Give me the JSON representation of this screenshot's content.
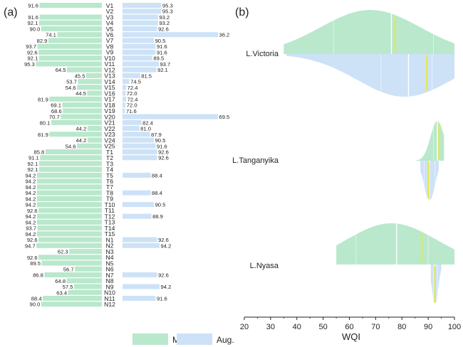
{
  "panel_a": {
    "label": "(a)",
    "legend": [
      {
        "name": "Mar.",
        "color": "#b9e8cc"
      },
      {
        "name": "Aug.",
        "color": "#cde2f7"
      }
    ]
  },
  "panel_b": {
    "label": "(b)",
    "xlabel": "WQI"
  },
  "chart_data": [
    {
      "type": "bar",
      "title": "",
      "orientation": "diverging-horizontal",
      "categories": [
        "V1",
        "V2",
        "V3",
        "V4",
        "V5",
        "V6",
        "V7",
        "V8",
        "V9",
        "V10",
        "V11",
        "V12",
        "V13",
        "V14",
        "V15",
        "V16",
        "V17",
        "V18",
        "V19",
        "V20",
        "V21",
        "V22",
        "V23",
        "V24",
        "V25",
        "T1",
        "T2",
        "T3",
        "T4",
        "T5",
        "T6",
        "T7",
        "T8",
        "T9",
        "T10",
        "T11",
        "T12",
        "T13",
        "T14",
        "T15",
        "N1",
        "N2",
        "N3",
        "N4",
        "N5",
        "N6",
        "N7",
        "N8",
        "N9",
        "N10",
        "N11",
        "N12"
      ],
      "series": [
        {
          "name": "Mar.",
          "color": "#b9e8cc",
          "values": [
            91.6,
            null,
            91.6,
            92.1,
            90.0,
            74.1,
            82.9,
            93.7,
            92.6,
            92.1,
            95.3,
            64.5,
            45.5,
            53.7,
            54.6,
            44.5,
            81.9,
            69.1,
            68.6,
            70.7,
            80.1,
            44.2,
            81.9,
            44.2,
            54.6,
            85.8,
            91.1,
            92.1,
            92.1,
            94.2,
            94.2,
            94.2,
            94.2,
            94.2,
            94.2,
            92.6,
            94.2,
            94.2,
            93.7,
            94.2,
            92.6,
            94.7,
            62.3,
            92.6,
            89.5,
            56.7,
            86.8,
            64.8,
            57.5,
            63.4,
            88.4,
            90.0
          ]
        },
        {
          "name": "Aug.",
          "color": "#cde2f7",
          "values": [
            95.3,
            95.3,
            93.2,
            93.2,
            92.6,
            36.2,
            90.5,
            91.6,
            91.6,
            89.5,
            93.7,
            92.1,
            81.5,
            74.5,
            72.4,
            72.0,
            72.4,
            72.0,
            71.6,
            69.5,
            82.4,
            81.0,
            87.9,
            90.5,
            91.6,
            92.6,
            92.6,
            null,
            null,
            88.4,
            null,
            null,
            88.4,
            null,
            90.5,
            null,
            88.9,
            null,
            null,
            null,
            92.6,
            94.2,
            null,
            null,
            null,
            null,
            92.6,
            null,
            94.2,
            null,
            91.6,
            null
          ]
        }
      ]
    },
    {
      "type": "violin",
      "title": "",
      "xlabel": "WQI",
      "xlim": [
        20,
        100
      ],
      "xticks": [
        20,
        30,
        40,
        50,
        60,
        70,
        80,
        90,
        100
      ],
      "series_names": [
        "Mar.",
        "Aug."
      ],
      "groups": [
        {
          "name": "L.Victoria",
          "mar": {
            "min": 35,
            "q1": 54,
            "median": 76,
            "q3": 92,
            "max": 100,
            "mean": 77.5,
            "mode": 68,
            "spread": 19,
            "peak": 1.0
          },
          "aug": {
            "min": 36,
            "q1": 72,
            "median": 82.5,
            "q3": 91.5,
            "max": 100,
            "mean": 89.5,
            "mode": 81,
            "spread": 18,
            "peak": 1.0
          }
        },
        {
          "name": "L.Tanganyika",
          "mar": {
            "min": 85,
            "q1": 92,
            "median": 93.5,
            "q3": 94.2,
            "max": 96,
            "mean": 94.2,
            "mode": 93.5,
            "spread": 2.6,
            "peak": 1.0
          },
          "aug": {
            "min": 87,
            "q1": 88.5,
            "median": 90.5,
            "q3": 92.6,
            "max": 94,
            "mean": 90.2,
            "mode": 90.5,
            "spread": 2.1,
            "peak": 1.0
          }
        },
        {
          "name": "L.Nyasa",
          "mar": {
            "min": 55,
            "q1": 62.5,
            "median": 78,
            "q3": 90,
            "max": 100,
            "mean": 87.5,
            "mode": 76,
            "spread": 17,
            "peak": 1.0
          },
          "aug": {
            "min": 91,
            "q1": 92,
            "median": 92.6,
            "q3": 93.5,
            "max": 95,
            "mean": 92.6,
            "mode": 92.6,
            "spread": 1.2,
            "peak": 1.0
          }
        }
      ]
    }
  ]
}
